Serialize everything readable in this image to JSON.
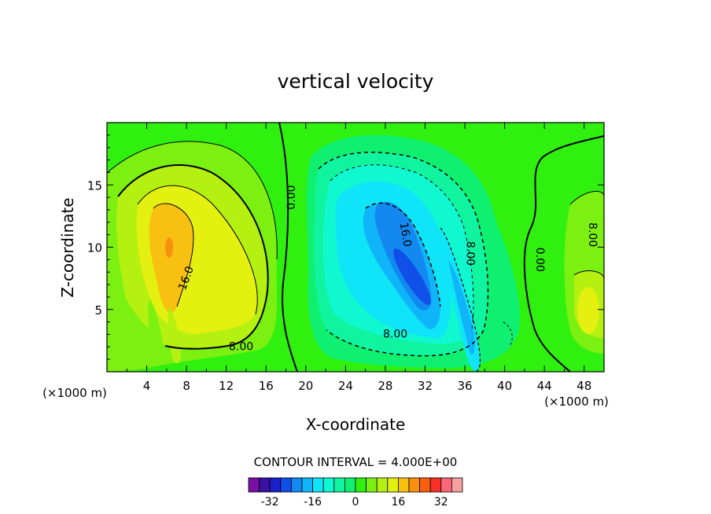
{
  "chart_data": {
    "type": "contour",
    "title": "vertical velocity",
    "xlabel": "X-coordinate",
    "ylabel": "Z-coordinate",
    "x_unit_left": "(×1000 m)",
    "x_unit_right": "(×1000 m)",
    "xlim": [
      0,
      50
    ],
    "ylim": [
      0,
      20
    ],
    "x_ticks": [
      4,
      8,
      12,
      16,
      20,
      24,
      28,
      32,
      36,
      40,
      44,
      48
    ],
    "y_ticks": [
      5,
      10,
      15
    ],
    "contour_interval_text": "CONTOUR INTERVAL = 4.000E+00",
    "contour_labels": [
      {
        "text": "0.00",
        "x": 18.6,
        "y": 14.0,
        "rotate": -90
      },
      {
        "text": "16.0",
        "x": 8.0,
        "y": 7.5,
        "rotate": -70
      },
      {
        "text": "8.00",
        "x": 13.5,
        "y": 2.0,
        "rotate": 0
      },
      {
        "text": "16.0",
        "x": 30.0,
        "y": 11.0,
        "rotate": 80
      },
      {
        "text": "8.00",
        "x": 29.0,
        "y": 3.0,
        "rotate": 0
      },
      {
        "text": "8.00",
        "x": 36.5,
        "y": 9.5,
        "rotate": 90
      },
      {
        "text": "0.00",
        "x": 43.5,
        "y": 9.0,
        "rotate": 90
      },
      {
        "text": "8.00",
        "x": 48.8,
        "y": 11.0,
        "rotate": 90
      }
    ],
    "colorbar": {
      "levels": [
        -36,
        -32,
        -28,
        -24,
        -20,
        -16,
        -12,
        -8,
        -4,
        0,
        4,
        8,
        12,
        16,
        20,
        24,
        28,
        32,
        36
      ],
      "colors": [
        "#7a0fa6",
        "#3a10a0",
        "#1a20c8",
        "#1050e8",
        "#1288f0",
        "#10b4f8",
        "#10e4f8",
        "#10f8d0",
        "#10f4a0",
        "#10f070",
        "#30f010",
        "#7cf010",
        "#b4f010",
        "#e4f010",
        "#f8c010",
        "#f89010",
        "#f86010",
        "#f83028",
        "#f86878",
        "#f8a0a0"
      ],
      "tick_labels": [
        "-32",
        "-16",
        "0",
        "16",
        "32"
      ],
      "tick_values": [
        -32,
        -16,
        0,
        16,
        32
      ]
    }
  }
}
